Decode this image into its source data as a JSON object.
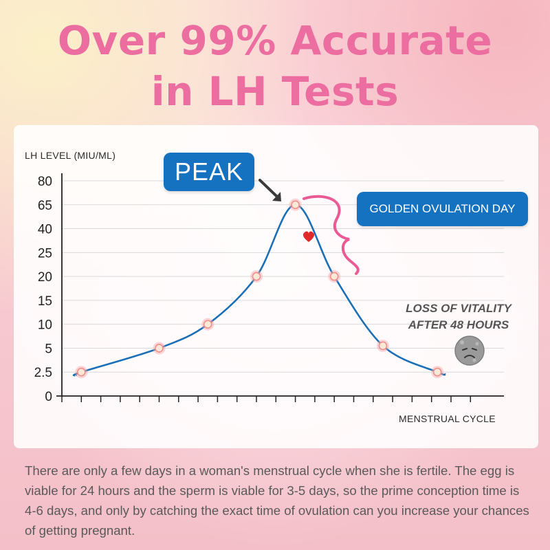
{
  "headline": {
    "line1": "Over 99% Accurate",
    "line2": "in LH Tests",
    "color": "#ec6ea0"
  },
  "annotations": {
    "peak": "PEAK",
    "golden": "GOLDEN OVULATION DAY",
    "loss_line1": "LOSS OF VITALITY",
    "loss_line2": "AFTER 48 HOURS",
    "badge_color": "#1472c0",
    "brace_color": "#ea5b95",
    "heart_color": "#e0292b",
    "sad_icon": "sad-face-icon",
    "heart_icon": "heart-icon"
  },
  "description": "There are only a few days in a woman's menstrual cycle when she is fertile. The egg is viable for 24 hours and the sperm is viable for 3-5 days, so the prime conception time is 4-6 days, and only by catching the exact time of ovulation can you increase your chances of getting pregnant.",
  "chart_data": {
    "type": "line",
    "ylabel": "LH LEVEL (MIU/ML)",
    "xlabel": "MENSTRUAL CYCLE",
    "y_ticks": [
      "0",
      "2.5",
      "5",
      "10",
      "15",
      "20",
      "25",
      "40",
      "65",
      "80"
    ],
    "y_scale": "ordinal (ticks evenly spaced)",
    "x_ticks_count": 22,
    "grid": true,
    "line_color": "#1a6fb6",
    "series": [
      {
        "points": [
          {
            "x": 1,
            "y": 2.5
          },
          {
            "x": 5,
            "y": 5
          },
          {
            "x": 7.5,
            "y": 10
          },
          {
            "x": 10,
            "y": 20
          },
          {
            "x": 12,
            "y": 65
          },
          {
            "x": 14,
            "y": 20
          },
          {
            "x": 16.5,
            "y": 5.5
          },
          {
            "x": 19.3,
            "y": 2.5
          }
        ]
      }
    ]
  }
}
